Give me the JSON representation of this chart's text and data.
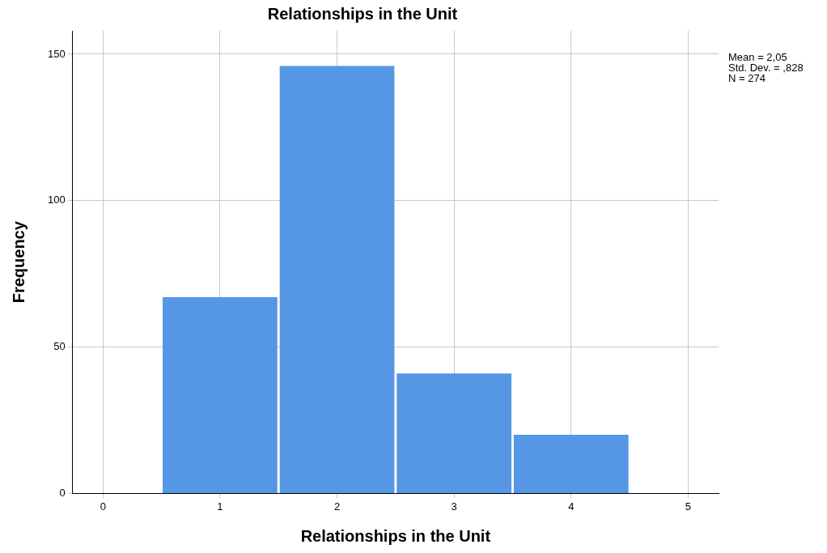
{
  "chart_data": {
    "type": "histogram",
    "title": "Relationships in the Unit",
    "xlabel": "Relationships in the Unit",
    "ylabel": "Frequency",
    "bins": [
      0.5,
      1.5,
      2.5,
      3.5,
      4.5
    ],
    "values": [
      67,
      146,
      41,
      20
    ],
    "color": "#5597e4",
    "xlim": [
      -0.26,
      5.26
    ],
    "xticks": [
      0,
      1,
      2,
      3,
      4,
      5
    ],
    "ylim": [
      0,
      158
    ],
    "yticks": [
      0,
      50,
      100,
      150
    ],
    "grid": true,
    "annotations": [
      "Mean = 2,05",
      "Std. Dev. = ,828",
      "N = 274"
    ]
  }
}
